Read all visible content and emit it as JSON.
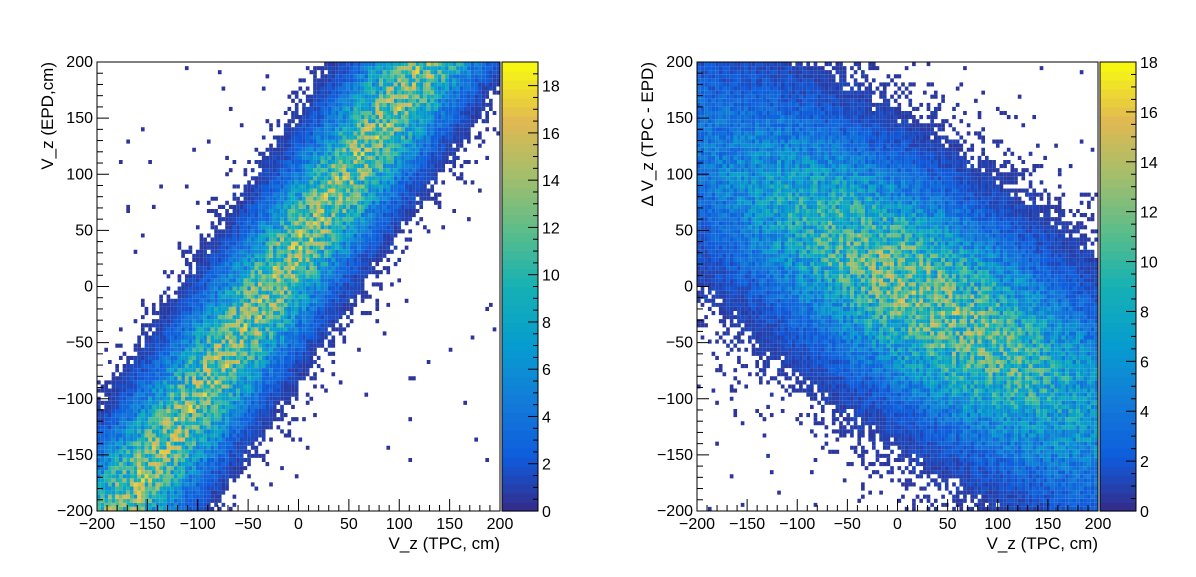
{
  "chart_data": [
    {
      "type": "heatmap",
      "title": "",
      "xlabel": "V_z (TPC, cm)",
      "ylabel": "V_z (EPD,cm)",
      "xlim": [
        -200,
        200
      ],
      "ylim": [
        -200,
        200
      ],
      "x_ticks": [
        "−200",
        "−150",
        "−100",
        "−50",
        "0",
        "50",
        "100",
        "150",
        "200"
      ],
      "y_ticks": [
        "−200",
        "−150",
        "−100",
        "−50",
        "0",
        "50",
        "100",
        "150",
        "200"
      ],
      "colorbar": {
        "min": 0,
        "max": 19,
        "ticks": [
          "0",
          "2",
          "4",
          "6",
          "8",
          "10",
          "12",
          "14",
          "16",
          "18"
        ]
      },
      "distribution": {
        "shape": "diagonal band, positive correlation",
        "center_line": {
          "x": [
            -200,
            200
          ],
          "y": [
            -230,
            300
          ]
        },
        "peak_counts": 12
      }
    },
    {
      "type": "heatmap",
      "title": "",
      "xlabel": "V_z (TPC, cm)",
      "ylabel": "Δ V_z (TPC - EPD)",
      "xlim": [
        -200,
        200
      ],
      "ylim": [
        -200,
        200
      ],
      "x_ticks": [
        "−200",
        "−150",
        "−100",
        "−50",
        "0",
        "50",
        "100",
        "150",
        "200"
      ],
      "y_ticks": [
        "−200",
        "−150",
        "−100",
        "−50",
        "0",
        "50",
        "100",
        "150",
        "200"
      ],
      "colorbar": {
        "min": 0,
        "max": 18,
        "ticks": [
          "0",
          "2",
          "4",
          "6",
          "8",
          "10",
          "12",
          "14",
          "16",
          "18"
        ]
      },
      "distribution": {
        "shape": "diagonal band, negative correlation",
        "center_line": {
          "x": [
            -200,
            200
          ],
          "y": [
            120,
            -110
          ]
        },
        "peak_counts": 11
      }
    }
  ]
}
